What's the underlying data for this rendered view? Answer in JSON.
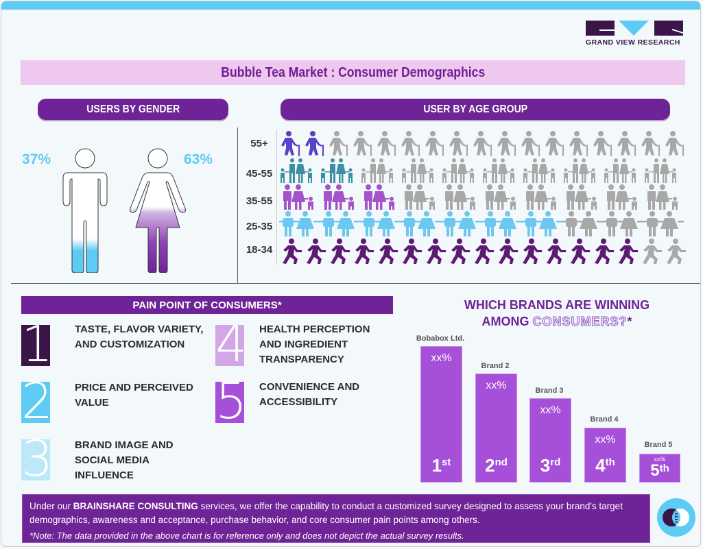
{
  "brand": {
    "logo_name": "GRAND VIEW RESEARCH",
    "colors": {
      "dark": "#3b1448",
      "cyan": "#5ecbf4",
      "purple": "#6e2396",
      "bar": "#a64fd8",
      "pink": "#efc8ef",
      "grey": "#a8a8a8"
    }
  },
  "title": "Bubble Tea Market : Consumer Demographics",
  "gender": {
    "header": "USERS BY GENDER",
    "male_pct": "37%",
    "female_pct": "63%"
  },
  "age": {
    "header": "USER BY AGE GROUP",
    "rows": [
      {
        "label": "55+",
        "icon": "elderly-person-icon",
        "filled": 2,
        "total": 17,
        "color": "#5b40c8"
      },
      {
        "label": "45-55",
        "icon": "family-icon",
        "filled": 2,
        "total": 10,
        "color": "#3d8fa3"
      },
      {
        "label": "35-55",
        "icon": "parents-child-icon",
        "filled": 3,
        "total": 10,
        "color": "#a453c8"
      },
      {
        "label": "25-35",
        "icon": "couple-icon",
        "filled": 7,
        "total": 10,
        "color": "#6cc8f0"
      },
      {
        "label": "18-34",
        "icon": "running-person-icon",
        "filled": 15,
        "total": 17,
        "color": "#5e1a70"
      }
    ]
  },
  "pain_points": {
    "header": "PAIN POINT OF CONSUMERS*",
    "items": [
      {
        "num": "1",
        "color": "#3b1448",
        "line1": "TASTE, FLAVOR VARIETY,",
        "line2": "AND CUSTOMIZATION",
        "line3": ""
      },
      {
        "num": "2",
        "color": "#5ecbf4",
        "line1": "PRICE AND PERCEIVED",
        "line2": "VALUE",
        "line3": ""
      },
      {
        "num": "3",
        "color": "#bde8f8",
        "line1": "BRAND IMAGE AND",
        "line2": "SOCIAL MEDIA",
        "line3": "INFLUENCE"
      },
      {
        "num": "4",
        "color": "#d3a6e8",
        "line1": "HEALTH PERCEPTION",
        "line2": "AND INGREDIENT",
        "line3": "TRANSPARENCY"
      },
      {
        "num": "5",
        "color": "#a64fd8",
        "line1": "CONVENIENCE AND",
        "line2": "ACCESSIBILITY",
        "line3": ""
      }
    ]
  },
  "brands": {
    "title_line1": "WHICH BRANDS ARE WINNING",
    "title_line2_a": "AMONG ",
    "title_line2_b": "CONSUMERS?",
    "title_line2_c": "*",
    "items": [
      {
        "name": "Bobabox Ltd.",
        "value": "xx%",
        "rank": "1",
        "suffix": "st"
      },
      {
        "name": "Brand 2",
        "value": "xx%",
        "rank": "2",
        "suffix": "nd"
      },
      {
        "name": "Brand 3",
        "value": "xx%",
        "rank": "3",
        "suffix": "rd"
      },
      {
        "name": "Brand 4",
        "value": "xx%",
        "rank": "4",
        "suffix": "th"
      },
      {
        "name": "Brand 5",
        "value": "xx%",
        "rank": "5",
        "suffix": "th"
      }
    ]
  },
  "footer": {
    "text_pre": "Under our ",
    "text_bold": "BRAINSHARE CONSULTING",
    "text_post": " services, we offer the capability to conduct a customized survey designed to assess your brand's target demographics, awareness and acceptance, purchase behavior, and core consumer pain points among others.",
    "note": "*Note: The data provided in the above chart is for reference only and does not depict the actual survey results."
  }
}
